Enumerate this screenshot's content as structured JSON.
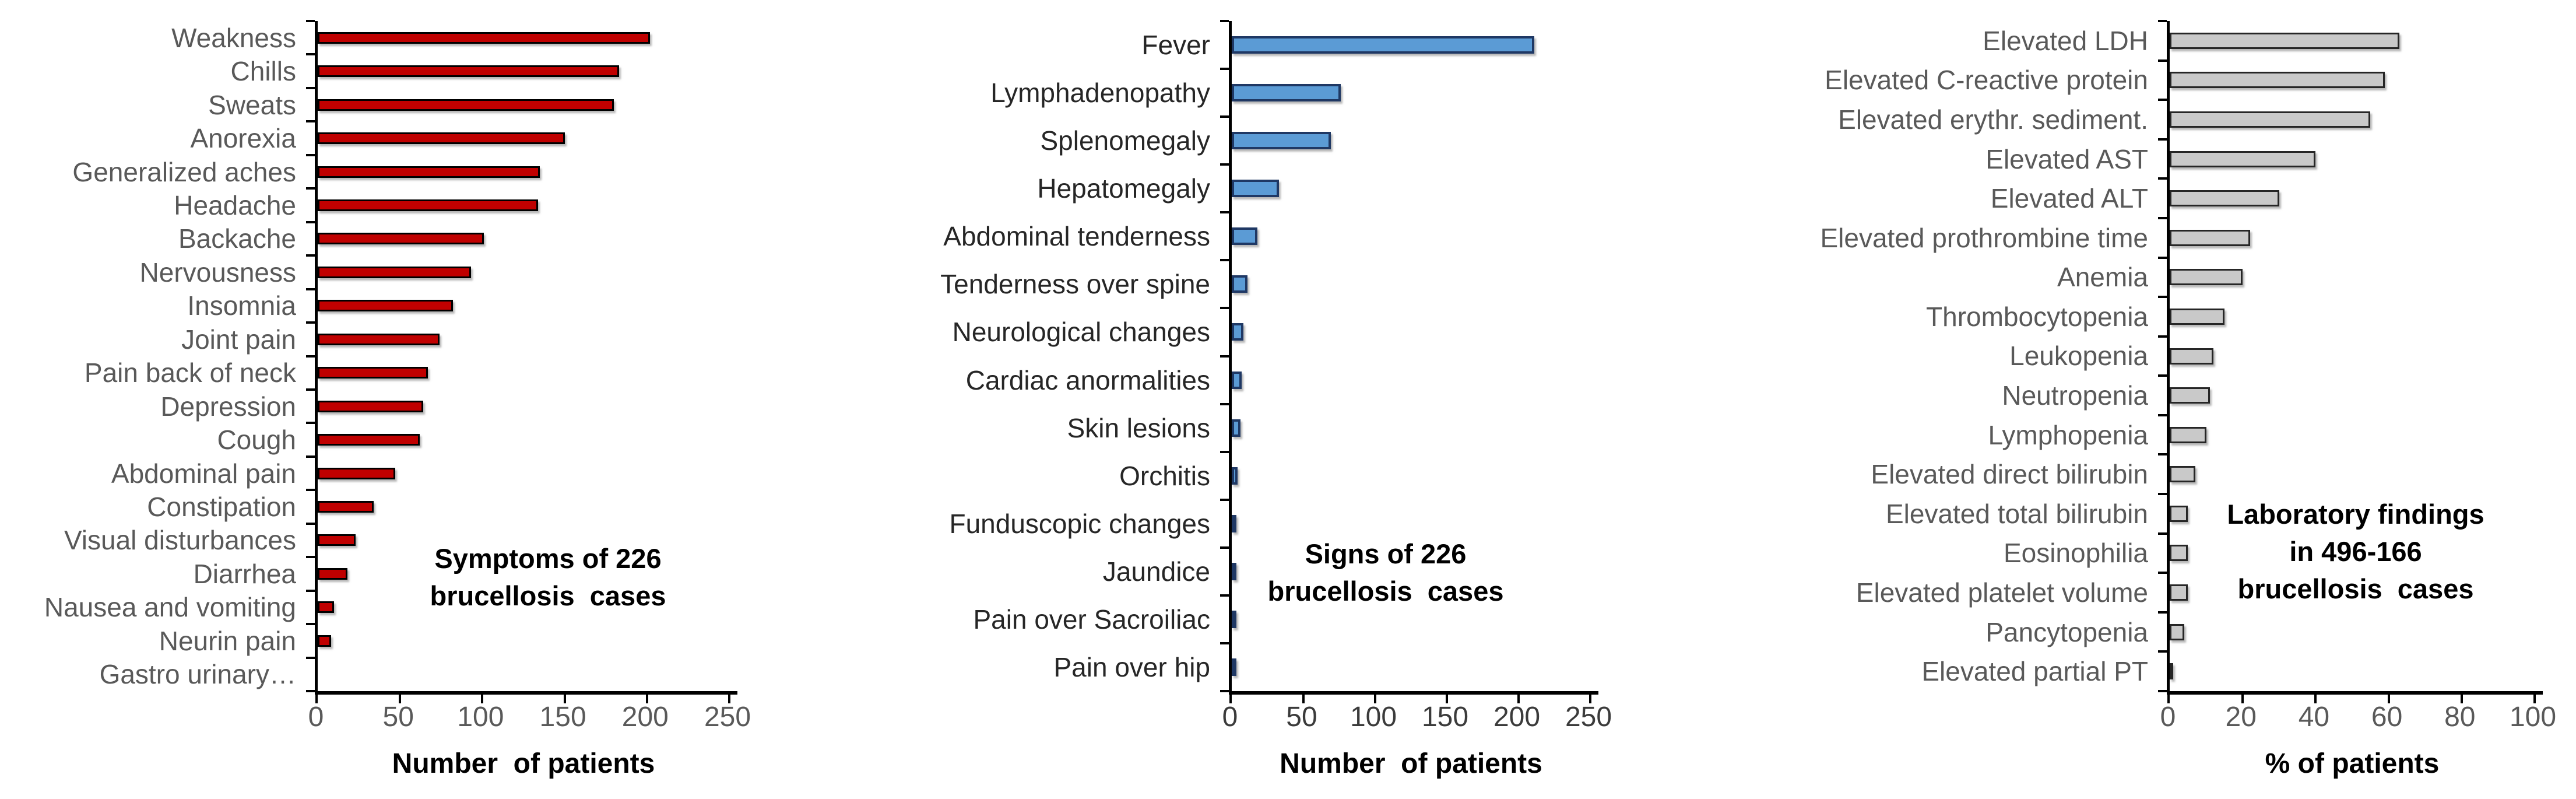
{
  "figure": {
    "background": "#ffffff",
    "description_labels": {
      "left_chart": "Symptoms of 226 brucellosis cases",
      "middle_chart": "Signs of 226 brucellosis cases",
      "right_chart": "Laboratory findings in 496-166 brucellosis cases"
    }
  },
  "chart_data": [
    {
      "type": "bar",
      "orientation": "horizontal",
      "title": "Symptoms of 226 brucellosis cases",
      "title_lines": [
        "Symptoms of 226",
        "brucellosis  cases"
      ],
      "xlabel": "Number  of patients",
      "xlim": [
        0,
        250
      ],
      "xticks": [
        0,
        50,
        100,
        150,
        200,
        250
      ],
      "grid": false,
      "legend": false,
      "categories": [
        "Weakness",
        "Chills",
        "Sweats",
        "Anorexia",
        "Generalized aches",
        "Headache",
        "Backache",
        "Nervousness",
        "Insomnia",
        "Joint pain",
        "Pain back of neck",
        "Depression",
        "Cough",
        "Abdominal pain",
        "Constipation",
        "Visual disturbances",
        "Diarrhea",
        "Nausea and vomiting",
        "Neurin pain",
        "Gastro urinary…"
      ],
      "values": [
        202,
        183,
        180,
        150,
        135,
        134,
        101,
        93,
        82,
        74,
        67,
        64,
        62,
        47,
        34,
        23,
        18,
        10,
        8,
        0
      ],
      "bar_fill": "#c00000",
      "bar_border": "#000000",
      "label_color": "#595959",
      "tick_color": "#595959"
    },
    {
      "type": "bar",
      "orientation": "horizontal",
      "title": "Signs of 226 brucellosis cases",
      "title_lines": [
        "Signs of 226",
        "brucellosis  cases"
      ],
      "xlabel": "Number  of patients",
      "xlim": [
        0,
        250
      ],
      "xticks": [
        0,
        50,
        100,
        150,
        200,
        250
      ],
      "grid": false,
      "legend": false,
      "categories": [
        "Fever",
        "Lymphadenopathy",
        "Splenomegaly",
        "Hepatomegaly",
        "Abdominal tenderness",
        "Tenderness over spine",
        "Neurological changes",
        "Cardiac anormalities",
        "Skin lesions",
        "Orchitis",
        "Funduscopic changes",
        "Jaundice",
        "Pain over Sacroiliac",
        "Pain over hip"
      ],
      "values": [
        211,
        76,
        69,
        33,
        18,
        11,
        8,
        7,
        6,
        4,
        3,
        3,
        2,
        1
      ],
      "bar_fill": "#5b9bd5",
      "bar_border": "#1f3864",
      "label_color": "#262626",
      "tick_color": "#3b3b3b"
    },
    {
      "type": "bar",
      "orientation": "horizontal",
      "title": "Laboratory findings in 496-166 brucellosis cases",
      "title_lines": [
        "Laboratory findings",
        "in 496-166",
        "brucellosis  cases"
      ],
      "xlabel": "% of patients",
      "xlim": [
        0,
        100
      ],
      "xticks": [
        0,
        20,
        40,
        60,
        80,
        100
      ],
      "grid": false,
      "legend": false,
      "categories": [
        "Elevated LDH",
        "Elevated C-reactive protein",
        "Elevated erythr. sediment.",
        "Elevated AST",
        "Elevated ALT",
        "Elevated prothrombine time",
        "Anemia",
        "Thrombocytopenia",
        "Leukopenia",
        "Neutropenia",
        "Lymphopenia",
        "Elevated direct bilirubin",
        "Elevated total bilirubin",
        "Eosinophilia",
        "Elevated platelet volume",
        "Pancytopenia",
        "Elevated partial PT"
      ],
      "values": [
        63,
        59,
        55,
        40,
        30,
        22,
        20,
        15,
        12,
        11,
        10,
        7,
        5,
        5,
        5,
        4,
        1
      ],
      "bar_fill": "#c9c9c9",
      "bar_border": "#262626",
      "label_color": "#595959",
      "tick_color": "#595959"
    }
  ]
}
